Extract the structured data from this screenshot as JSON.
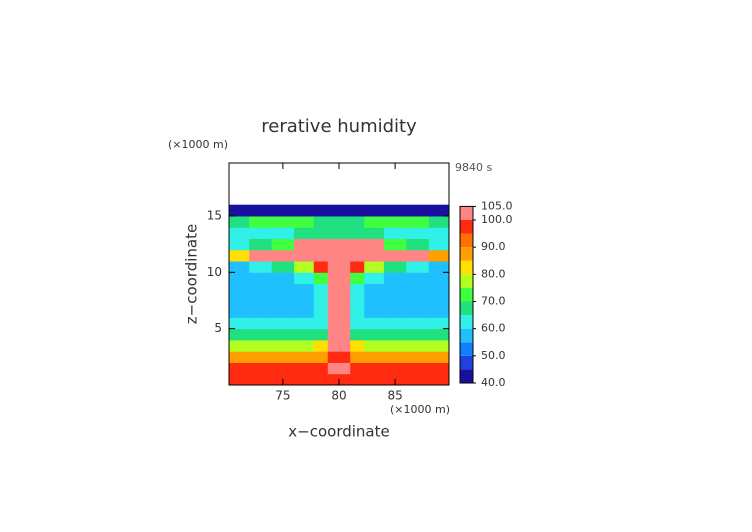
{
  "chart_data": {
    "type": "contour",
    "title": "rerative humidity",
    "time_label": "9840 s",
    "xlabel": "x−coordinate",
    "ylabel": "z−coordinate",
    "x_unit": "(×1000 m)",
    "y_unit": "(×1000 m)",
    "xlim": [
      70.2,
      89.8
    ],
    "ylim": [
      0,
      19.7
    ],
    "xticks": [
      75,
      80,
      85
    ],
    "yticks": [
      5,
      10,
      15
    ],
    "x": [
      71,
      73,
      75,
      77,
      78.5,
      79.5,
      80.5,
      81.5,
      83,
      85,
      87,
      89
    ],
    "y": [
      0.5,
      1.5,
      2.5,
      3.5,
      4.5,
      5.5,
      6.5,
      7.5,
      8.5,
      9.5,
      10.5,
      11.5,
      12.5,
      13.5,
      14.5,
      15.5
    ],
    "values": [
      [
        95,
        97,
        95,
        96,
        95,
        96,
        96,
        95,
        96,
        95,
        97,
        95
      ],
      [
        99,
        98,
        99,
        99,
        98,
        101,
        101,
        98,
        99,
        99,
        98,
        99
      ],
      [
        88,
        88,
        87,
        88,
        88,
        95,
        95,
        88,
        87,
        88,
        88,
        88
      ],
      [
        78,
        78,
        79,
        78,
        80,
        102,
        102,
        80,
        78,
        79,
        78,
        78
      ],
      [
        66,
        67,
        66,
        66,
        68,
        102,
        102,
        68,
        66,
        67,
        66,
        66
      ],
      [
        60,
        61,
        60,
        61,
        64,
        102,
        102,
        64,
        61,
        60,
        61,
        60
      ],
      [
        58,
        59,
        58,
        59,
        63,
        102,
        102,
        63,
        59,
        58,
        59,
        58
      ],
      [
        58,
        58,
        57,
        58,
        62,
        102,
        102,
        62,
        58,
        57,
        58,
        58
      ],
      [
        59,
        58,
        58,
        58,
        64,
        102,
        102,
        64,
        58,
        58,
        58,
        59
      ],
      [
        58,
        58,
        58,
        60,
        72,
        102,
        102,
        72,
        60,
        58,
        58,
        58
      ],
      [
        58,
        60,
        65,
        75,
        95,
        102,
        102,
        95,
        75,
        65,
        60,
        58
      ],
      [
        80,
        102,
        102,
        102,
        102,
        102,
        102,
        102,
        102,
        102,
        102,
        85
      ],
      [
        62,
        65,
        70,
        101,
        102,
        102,
        102,
        102,
        101,
        70,
        65,
        62
      ],
      [
        62,
        62,
        64,
        66,
        68,
        68,
        68,
        68,
        66,
        64,
        62,
        62
      ],
      [
        68,
        70,
        72,
        70,
        68,
        66,
        66,
        68,
        70,
        72,
        70,
        68
      ],
      [
        44,
        44,
        43,
        44,
        44,
        44,
        44,
        44,
        44,
        44,
        43,
        44
      ]
    ],
    "levels": [
      40,
      45,
      50,
      55,
      60,
      65,
      70,
      75,
      80,
      85,
      90,
      95,
      100,
      105
    ],
    "colors": [
      "#1a10a0",
      "#2040e0",
      "#1080ff",
      "#20c0ff",
      "#30f0e8",
      "#20e080",
      "#40ff40",
      "#b0ff20",
      "#ffe000",
      "#ffa000",
      "#ff7000",
      "#ff2a10",
      "#ff8585"
    ],
    "colorbar_ticks": [
      {
        "value": 105,
        "label": "105.0"
      },
      {
        "value": 100,
        "label": "100.0"
      },
      {
        "value": 90,
        "label": "90.0"
      },
      {
        "value": 80,
        "label": "80.0"
      },
      {
        "value": 70,
        "label": "70.0"
      },
      {
        "value": 60,
        "label": "60.0"
      },
      {
        "value": 50,
        "label": "50.0"
      },
      {
        "value": 40,
        "label": "40.0"
      }
    ]
  }
}
